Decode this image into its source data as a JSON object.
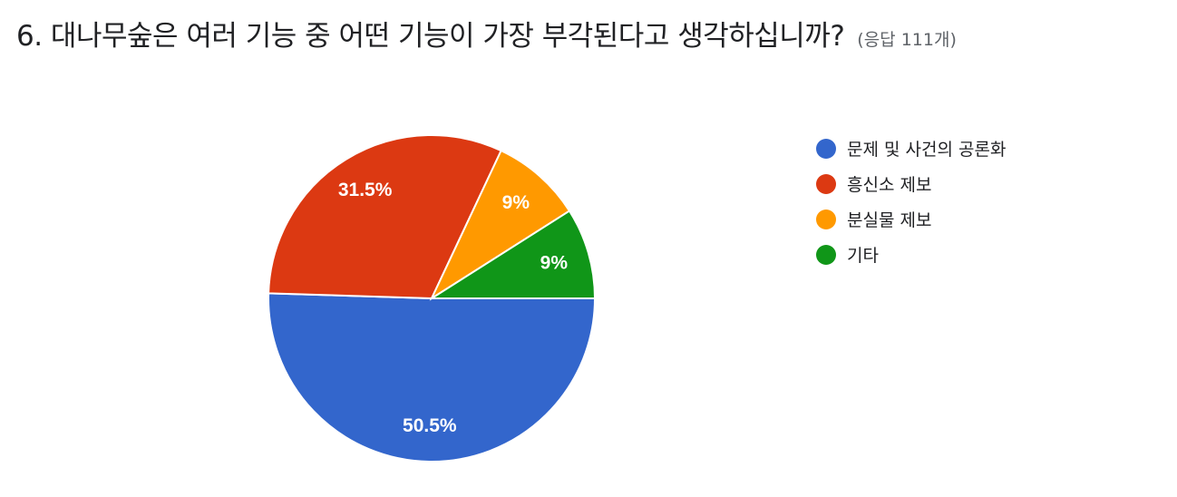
{
  "header": {
    "title": "6. 대나무숲은 여러 기능 중 어떤 기능이 가장 부각된다고 생각하십니까?",
    "responses": "(응답 111개)"
  },
  "chart_data": {
    "type": "pie",
    "categories": [
      "문제 및 사건의 공론화",
      "흥신소 제보",
      "분실물 제보",
      "기타"
    ],
    "values": [
      50.5,
      31.5,
      9,
      9
    ],
    "labels": [
      "50.5%",
      "31.5%",
      "9%",
      "9%"
    ],
    "colors": [
      "#3366cc",
      "#dc3912",
      "#ff9900",
      "#109618"
    ],
    "legend_position": "right"
  }
}
